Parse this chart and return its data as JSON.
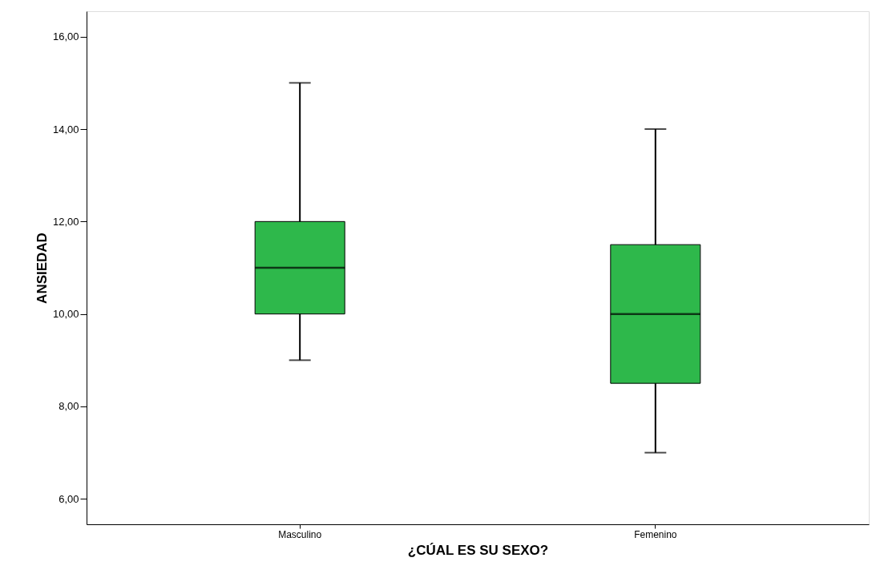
{
  "chart_data": {
    "type": "box",
    "xlabel": "¿CÚAL ES SU SEXO?",
    "ylabel": "ANSIEDAD",
    "categories": [
      "Masculino",
      "Femenino"
    ],
    "boxes": [
      {
        "low": 9,
        "q1": 10,
        "median": 11,
        "q3": 12,
        "high": 15
      },
      {
        "low": 7,
        "q1": 8.5,
        "median": 10,
        "q3": 11.5,
        "high": 14
      }
    ],
    "color": "#2eb84b",
    "ylim": [
      5.45,
      16.55
    ],
    "yticks": [
      {
        "value": 6,
        "label": "6,00"
      },
      {
        "value": 8,
        "label": "8,00"
      },
      {
        "value": 10,
        "label": "10,00"
      },
      {
        "value": 12,
        "label": "12,00"
      },
      {
        "value": 14,
        "label": "14,00"
      },
      {
        "value": 16,
        "label": "16,00"
      }
    ],
    "grid": false
  }
}
